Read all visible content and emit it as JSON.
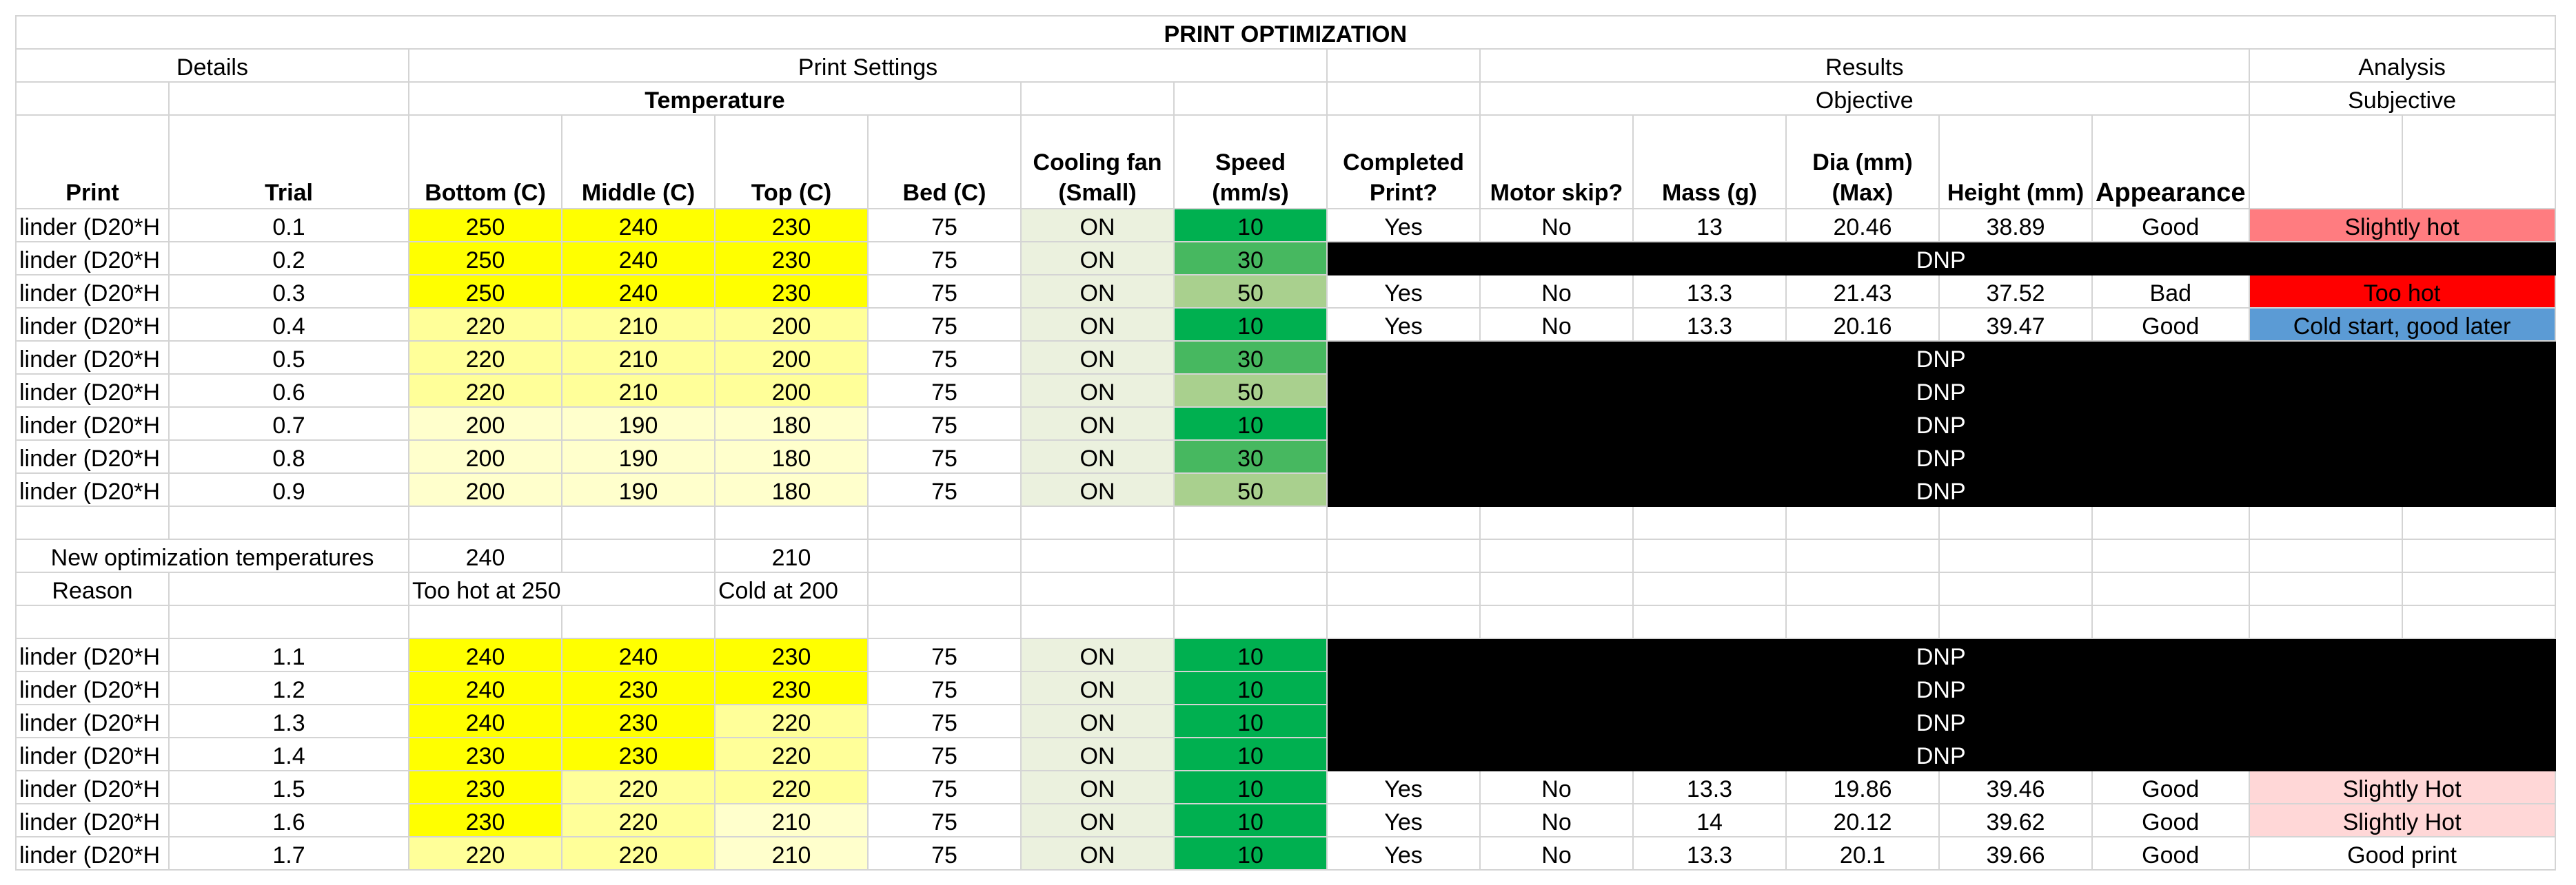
{
  "title": "PRINT OPTIMIZATION",
  "groups": {
    "details": "Details",
    "print_settings": "Print Settings",
    "results": "Results",
    "analysis": "Analysis"
  },
  "subgroups": {
    "temperature": "Temperature",
    "objective": "Objective",
    "subjective": "Subjective"
  },
  "headers": {
    "print": "Print",
    "trial": "Trial",
    "bottom": "Bottom (C)",
    "middle": "Middle (C)",
    "top": "Top (C)",
    "bed": "Bed (C)",
    "fan_1": "Cooling fan",
    "fan_2": "(Small)",
    "speed_1": "Speed",
    "speed_2": "(mm/s)",
    "completed_1": "Completed",
    "completed_2": "Print?",
    "motor": "Motor skip?",
    "mass": "Mass (g)",
    "dia_1": "Dia (mm)",
    "dia_2": "(Max)",
    "height": "Height (mm)",
    "appearance": "Appearance"
  },
  "colors": {
    "yellow_bright": "#ffff00",
    "yellow_mid": "#ffff99",
    "yellow_light": "#ffffcc",
    "fan_bg": "#ebf1de",
    "green_dark": "#00b050",
    "green_mid": "#47b860",
    "green_light": "#a9d08e",
    "red_light": "#ff7c80",
    "red": "#ff0000",
    "blue": "#5b9bd5",
    "pink": "#ffd7d7",
    "dnp_bg": "#000000"
  },
  "rows_a": [
    {
      "print": "linder (D20*H",
      "trial": "0.1",
      "bottom": "250",
      "middle": "240",
      "top": "230",
      "bed": "75",
      "fan": "ON",
      "speed": "10",
      "completed": "Yes",
      "motor": "No",
      "mass": "13",
      "dia": "20.46",
      "height": "38.89",
      "appearance": "Good",
      "analysis": "Slightly hot"
    },
    {
      "print": "linder (D20*H",
      "trial": "0.2",
      "bottom": "250",
      "middle": "240",
      "top": "230",
      "bed": "75",
      "fan": "ON",
      "speed": "30",
      "dnp": "DNP"
    },
    {
      "print": "linder (D20*H",
      "trial": "0.3",
      "bottom": "250",
      "middle": "240",
      "top": "230",
      "bed": "75",
      "fan": "ON",
      "speed": "50",
      "completed": "Yes",
      "motor": "No",
      "mass": "13.3",
      "dia": "21.43",
      "height": "37.52",
      "appearance": "Bad",
      "analysis": "Too hot"
    },
    {
      "print": "linder (D20*H",
      "trial": "0.4",
      "bottom": "220",
      "middle": "210",
      "top": "200",
      "bed": "75",
      "fan": "ON",
      "speed": "10",
      "completed": "Yes",
      "motor": "No",
      "mass": "13.3",
      "dia": "20.16",
      "height": "39.47",
      "appearance": "Good",
      "analysis": "Cold start, good later"
    },
    {
      "print": "linder (D20*H",
      "trial": "0.5",
      "bottom": "220",
      "middle": "210",
      "top": "200",
      "bed": "75",
      "fan": "ON",
      "speed": "30",
      "dnp": "DNP"
    },
    {
      "print": "linder (D20*H",
      "trial": "0.6",
      "bottom": "220",
      "middle": "210",
      "top": "200",
      "bed": "75",
      "fan": "ON",
      "speed": "50",
      "dnp": "DNP"
    },
    {
      "print": "linder (D20*H",
      "trial": "0.7",
      "bottom": "200",
      "middle": "190",
      "top": "180",
      "bed": "75",
      "fan": "ON",
      "speed": "10",
      "dnp": "DNP"
    },
    {
      "print": "linder (D20*H",
      "trial": "0.8",
      "bottom": "200",
      "middle": "190",
      "top": "180",
      "bed": "75",
      "fan": "ON",
      "speed": "30",
      "dnp": "DNP"
    },
    {
      "print": "linder (D20*H",
      "trial": "0.9",
      "bottom": "200",
      "middle": "190",
      "top": "180",
      "bed": "75",
      "fan": "ON",
      "speed": "50",
      "dnp": "DNP"
    }
  ],
  "new_opt": {
    "label": "New optimization temperatures",
    "bottom": "240",
    "top": "210"
  },
  "reason": {
    "label": "Reason",
    "bottom": "Too hot at 250",
    "top": "Cold at 200"
  },
  "rows_b": [
    {
      "print": "linder (D20*H",
      "trial": "1.1",
      "bottom": "240",
      "middle": "240",
      "top": "230",
      "bed": "75",
      "fan": "ON",
      "speed": "10",
      "dnp": "DNP"
    },
    {
      "print": "linder (D20*H",
      "trial": "1.2",
      "bottom": "240",
      "middle": "230",
      "top": "230",
      "bed": "75",
      "fan": "ON",
      "speed": "10",
      "dnp": "DNP"
    },
    {
      "print": "linder (D20*H",
      "trial": "1.3",
      "bottom": "240",
      "middle": "230",
      "top": "220",
      "bed": "75",
      "fan": "ON",
      "speed": "10",
      "dnp": "DNP"
    },
    {
      "print": "linder (D20*H",
      "trial": "1.4",
      "bottom": "230",
      "middle": "230",
      "top": "220",
      "bed": "75",
      "fan": "ON",
      "speed": "10",
      "dnp": "DNP"
    },
    {
      "print": "linder (D20*H",
      "trial": "1.5",
      "bottom": "230",
      "middle": "220",
      "top": "220",
      "bed": "75",
      "fan": "ON",
      "speed": "10",
      "completed": "Yes",
      "motor": "No",
      "mass": "13.3",
      "dia": "19.86",
      "height": "39.46",
      "appearance": "Good",
      "analysis": "Slightly Hot"
    },
    {
      "print": "linder (D20*H",
      "trial": "1.6",
      "bottom": "230",
      "middle": "220",
      "top": "210",
      "bed": "75",
      "fan": "ON",
      "speed": "10",
      "completed": "Yes",
      "motor": "No",
      "mass": "14",
      "dia": "20.12",
      "height": "39.62",
      "appearance": "Good",
      "analysis": "Slightly Hot"
    },
    {
      "print": "linder (D20*H",
      "trial": "1.7",
      "bottom": "220",
      "middle": "220",
      "top": "210",
      "bed": "75",
      "fan": "ON",
      "speed": "10",
      "completed": "Yes",
      "motor": "No",
      "mass": "13.3",
      "dia": "20.1",
      "height": "39.66",
      "appearance": "Good",
      "analysis": "Good print"
    }
  ]
}
